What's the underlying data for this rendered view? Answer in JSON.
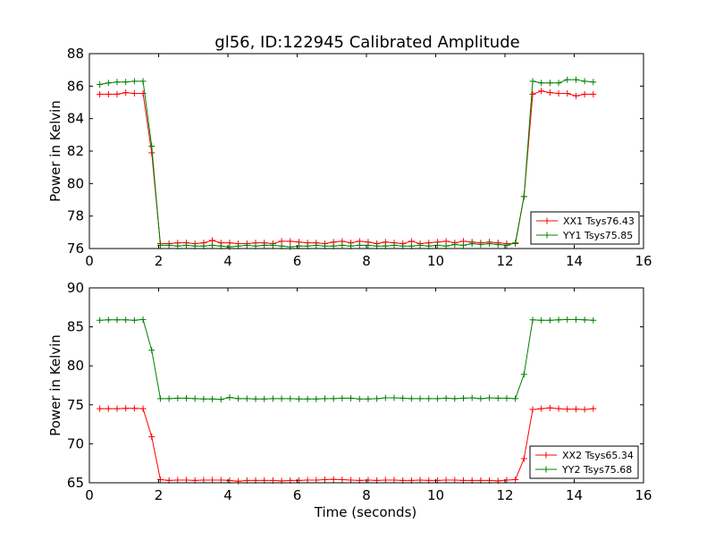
{
  "title": "gl56, ID:122945 Calibrated Amplitude",
  "xlabel": "Time (seconds)",
  "colors": {
    "red": "#ff0000",
    "green": "#008000"
  },
  "chart_data": [
    {
      "type": "line",
      "title": "gl56, ID:122945 Calibrated Amplitude",
      "ylabel": "Power in Kelvin",
      "xlabel": "",
      "xlim": [
        0,
        16
      ],
      "ylim": [
        76,
        88
      ],
      "xticks": [
        0,
        2,
        4,
        6,
        8,
        10,
        12,
        14,
        16
      ],
      "yticks": [
        76,
        78,
        80,
        82,
        84,
        86,
        88
      ],
      "grid": false,
      "legend_position": "lower-right",
      "x": [
        0.3,
        0.55,
        0.8,
        1.05,
        1.3,
        1.55,
        1.8,
        2.05,
        2.3,
        2.55,
        2.8,
        3.05,
        3.3,
        3.55,
        3.8,
        4.05,
        4.3,
        4.55,
        4.8,
        5.05,
        5.3,
        5.55,
        5.8,
        6.05,
        6.3,
        6.55,
        6.8,
        7.05,
        7.3,
        7.55,
        7.8,
        8.05,
        8.3,
        8.55,
        8.8,
        9.05,
        9.3,
        9.55,
        9.8,
        10.05,
        10.3,
        10.55,
        10.8,
        11.05,
        11.3,
        11.55,
        11.8,
        12.05,
        12.3,
        12.55,
        12.8,
        13.05,
        13.3,
        13.55,
        13.8,
        14.05,
        14.3,
        14.55
      ],
      "series": [
        {
          "name": "XX1 Tsys76.43",
          "color": "#ff0000",
          "values": [
            85.5,
            85.5,
            85.5,
            85.6,
            85.55,
            85.55,
            81.9,
            76.3,
            76.3,
            76.35,
            76.35,
            76.3,
            76.35,
            76.5,
            76.35,
            76.35,
            76.3,
            76.3,
            76.35,
            76.35,
            76.3,
            76.45,
            76.45,
            76.4,
            76.35,
            76.35,
            76.3,
            76.4,
            76.45,
            76.35,
            76.45,
            76.4,
            76.3,
            76.4,
            76.35,
            76.3,
            76.45,
            76.3,
            76.35,
            76.4,
            76.45,
            76.35,
            76.45,
            76.4,
            76.35,
            76.4,
            76.35,
            76.3,
            76.3,
            79.2,
            85.5,
            85.7,
            85.6,
            85.55,
            85.55,
            85.4,
            85.5,
            85.5
          ]
        },
        {
          "name": "YY1 Tsys75.85",
          "color": "#008000",
          "values": [
            86.1,
            86.2,
            86.25,
            86.25,
            86.3,
            86.3,
            82.3,
            76.2,
            76.2,
            76.15,
            76.2,
            76.15,
            76.15,
            76.2,
            76.15,
            76.1,
            76.15,
            76.2,
            76.15,
            76.2,
            76.2,
            76.15,
            76.1,
            76.15,
            76.15,
            76.2,
            76.15,
            76.15,
            76.2,
            76.15,
            76.2,
            76.2,
            76.15,
            76.15,
            76.2,
            76.15,
            76.15,
            76.2,
            76.15,
            76.2,
            76.15,
            76.25,
            76.2,
            76.3,
            76.25,
            76.3,
            76.25,
            76.2,
            76.35,
            79.2,
            86.3,
            86.2,
            86.2,
            86.2,
            86.4,
            86.4,
            86.3,
            86.25
          ]
        }
      ]
    },
    {
      "type": "line",
      "title": "",
      "ylabel": "Power in Kelvin",
      "xlabel": "Time (seconds)",
      "xlim": [
        0,
        16
      ],
      "ylim": [
        65,
        90
      ],
      "xticks": [
        0,
        2,
        4,
        6,
        8,
        10,
        12,
        14,
        16
      ],
      "yticks": [
        65,
        70,
        75,
        80,
        85,
        90
      ],
      "grid": false,
      "legend_position": "lower-right",
      "x": [
        0.3,
        0.55,
        0.8,
        1.05,
        1.3,
        1.55,
        1.8,
        2.05,
        2.3,
        2.55,
        2.8,
        3.05,
        3.3,
        3.55,
        3.8,
        4.05,
        4.3,
        4.55,
        4.8,
        5.05,
        5.3,
        5.55,
        5.8,
        6.05,
        6.3,
        6.55,
        6.8,
        7.05,
        7.3,
        7.55,
        7.8,
        8.05,
        8.3,
        8.55,
        8.8,
        9.05,
        9.3,
        9.55,
        9.8,
        10.05,
        10.3,
        10.55,
        10.8,
        11.05,
        11.3,
        11.55,
        11.8,
        12.05,
        12.3,
        12.55,
        12.8,
        13.05,
        13.3,
        13.55,
        13.8,
        14.05,
        14.3,
        14.55
      ],
      "series": [
        {
          "name": "XX2 Tsys65.34",
          "color": "#ff0000",
          "values": [
            74.5,
            74.5,
            74.5,
            74.55,
            74.55,
            74.5,
            70.9,
            65.4,
            65.3,
            65.35,
            65.35,
            65.3,
            65.35,
            65.35,
            65.35,
            65.3,
            65.2,
            65.3,
            65.3,
            65.3,
            65.3,
            65.25,
            65.3,
            65.3,
            65.35,
            65.35,
            65.4,
            65.45,
            65.4,
            65.35,
            65.3,
            65.35,
            65.3,
            65.35,
            65.35,
            65.3,
            65.3,
            65.35,
            65.3,
            65.3,
            65.35,
            65.35,
            65.3,
            65.3,
            65.3,
            65.3,
            65.25,
            65.35,
            65.4,
            68.1,
            74.4,
            74.5,
            74.6,
            74.5,
            74.45,
            74.45,
            74.4,
            74.5
          ]
        },
        {
          "name": "YY2 Tsys75.68",
          "color": "#008000",
          "values": [
            85.85,
            85.9,
            85.9,
            85.9,
            85.85,
            85.95,
            82.0,
            75.8,
            75.8,
            75.85,
            75.85,
            75.8,
            75.75,
            75.75,
            75.7,
            75.95,
            75.8,
            75.8,
            75.75,
            75.75,
            75.8,
            75.8,
            75.8,
            75.75,
            75.75,
            75.75,
            75.8,
            75.8,
            75.85,
            75.85,
            75.75,
            75.75,
            75.8,
            75.9,
            75.9,
            75.85,
            75.8,
            75.8,
            75.8,
            75.8,
            75.85,
            75.8,
            75.85,
            75.9,
            75.8,
            75.9,
            75.85,
            75.85,
            75.8,
            78.9,
            85.9,
            85.85,
            85.85,
            85.9,
            85.95,
            85.95,
            85.9,
            85.85
          ]
        }
      ]
    }
  ]
}
